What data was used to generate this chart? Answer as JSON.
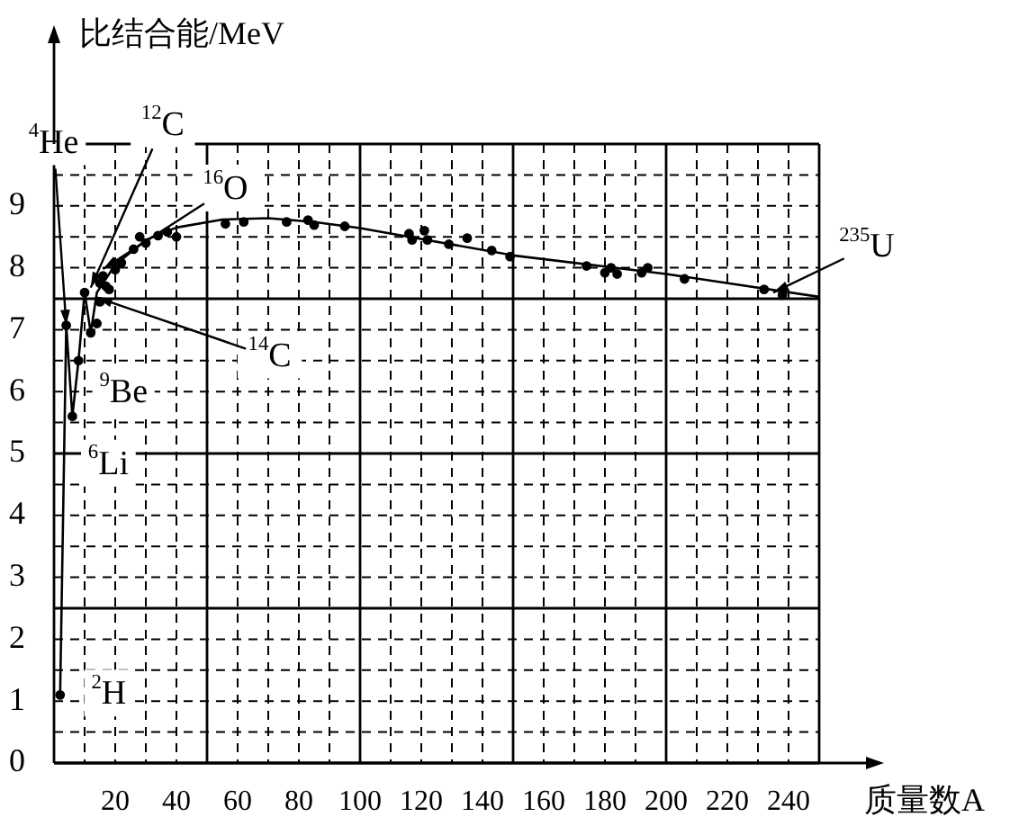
{
  "chart_data": {
    "type": "scatter",
    "xlabel": "质量数A",
    "ylabel": "比结合能/MeV",
    "xlim": [
      0,
      250
    ],
    "ylim": [
      0,
      10
    ],
    "xticks": [
      {
        "value": 10,
        "label": null
      },
      20,
      {
        "value": 30,
        "label": null
      },
      40,
      {
        "value": 50,
        "label": null
      },
      60,
      {
        "value": 70,
        "label": null
      },
      80,
      {
        "value": 90,
        "label": null
      },
      100,
      {
        "value": 110,
        "label": null
      },
      120,
      {
        "value": 130,
        "label": null
      },
      140,
      {
        "value": 150,
        "label": null
      },
      160,
      {
        "value": 170,
        "label": null
      },
      180,
      {
        "value": 190,
        "label": null
      },
      200,
      {
        "value": 210,
        "label": null
      },
      220,
      {
        "value": 230,
        "label": null
      },
      240,
      {
        "value": 250,
        "label": null
      }
    ],
    "yticks": [
      0,
      {
        "value": 0.5,
        "label": null
      },
      1,
      {
        "value": 1.5,
        "label": null
      },
      2,
      {
        "value": 2.5,
        "label": null
      },
      3,
      {
        "value": 3.5,
        "label": null
      },
      4,
      {
        "value": 4.5,
        "label": null
      },
      5,
      {
        "value": 5.5,
        "label": null
      },
      6,
      {
        "value": 6.5,
        "label": null
      },
      7,
      {
        "value": 7.5,
        "label": null
      },
      8,
      {
        "value": 8.5,
        "label": null
      },
      9,
      {
        "value": 9.5,
        "label": null
      },
      {
        "value": 10,
        "label": null
      }
    ],
    "grid": true,
    "legend": false,
    "series": [
      {
        "type": "scatter",
        "color": "#000000",
        "marker": "circle",
        "x": [
          2,
          4,
          6,
          8,
          10,
          12,
          14,
          15,
          15,
          16,
          17,
          18,
          20,
          22,
          26,
          28,
          30,
          34,
          37,
          40,
          56,
          62,
          76,
          83,
          85,
          95,
          116,
          117,
          121,
          122,
          129,
          135,
          143,
          149,
          174,
          180,
          182,
          184,
          192,
          194,
          206,
          232,
          238
        ],
        "values": [
          1.1,
          7.07,
          5.6,
          6.5,
          7.6,
          6.95,
          7.1,
          7.45,
          7.75,
          7.87,
          7.7,
          7.65,
          7.97,
          8.08,
          8.3,
          8.5,
          8.4,
          8.52,
          8.58,
          8.5,
          8.71,
          8.74,
          8.74,
          8.77,
          8.69,
          8.67,
          8.55,
          8.45,
          8.6,
          8.45,
          8.38,
          8.48,
          8.28,
          8.18,
          8.03,
          7.92,
          8.0,
          7.9,
          7.92,
          8.0,
          7.82,
          7.65,
          7.56
        ]
      },
      {
        "type": "line",
        "color": "#000000",
        "marker": "none",
        "x": [
          2,
          4,
          6,
          8,
          10,
          12,
          14,
          20,
          30,
          40,
          55,
          70,
          85,
          100,
          150,
          200,
          250
        ],
        "values": [
          1.1,
          7.07,
          5.6,
          6.5,
          7.6,
          6.95,
          7.6,
          8.05,
          8.45,
          8.65,
          8.78,
          8.8,
          8.74,
          8.64,
          8.2,
          7.9,
          7.53
        ]
      }
    ],
    "annotations": [
      {
        "text": "$^{4}$He",
        "x": 4,
        "y": 7.07
      },
      {
        "text": "$^{12}$C",
        "x": 12,
        "y": 7.68
      },
      {
        "text": "$^{16}$O",
        "x": 16,
        "y": 7.98
      },
      {
        "text": "$^{14}$C",
        "x": 14,
        "y": 7.52
      },
      {
        "text": "$^{9}$Be",
        "x": 8,
        "y": 6.5
      },
      {
        "text": "$^{6}$Li",
        "x": 6,
        "y": 5.6
      },
      {
        "text": "$^{2}$H",
        "x": 2,
        "y": 1.1
      },
      {
        "text": "$^{235}$U",
        "x": 235,
        "y": 7.6
      }
    ]
  }
}
